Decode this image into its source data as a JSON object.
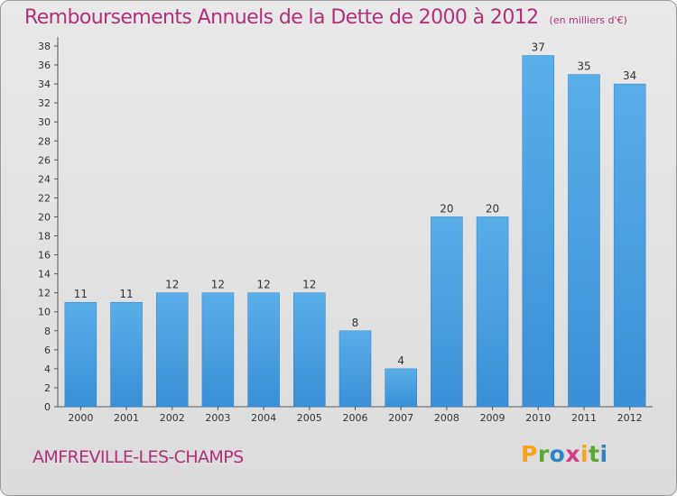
{
  "chart_data": {
    "type": "bar",
    "title": "Remboursements Annuels de la Dette de 2000 à 2012",
    "subtitle": "(en milliers d'€)",
    "categories": [
      "2000",
      "2001",
      "2002",
      "2003",
      "2004",
      "2005",
      "2006",
      "2007",
      "2008",
      "2009",
      "2010",
      "2011",
      "2012"
    ],
    "values": [
      11,
      11,
      12,
      12,
      12,
      12,
      8,
      4,
      20,
      20,
      37,
      35,
      34
    ],
    "ylim": [
      0,
      38
    ],
    "ytick_step": 2,
    "grid": false,
    "bar_color": "#3a8fd6",
    "bar_color_light": "#5aaee8"
  },
  "place_name": "AMFREVILLE-LES-CHAMPS",
  "brand": {
    "letters": [
      "P",
      "r",
      "o",
      "x",
      "i",
      "t",
      "i"
    ],
    "colors": [
      "#f7a418",
      "#5aa82f",
      "#2d84c8",
      "#d63a8c",
      "#f7a418",
      "#5aa82f",
      "#2d84c8"
    ]
  }
}
